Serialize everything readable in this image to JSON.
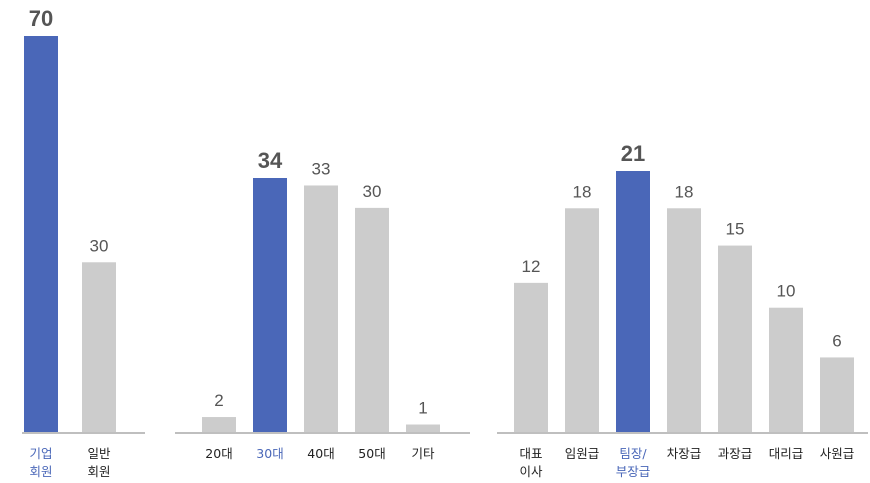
{
  "colors": {
    "highlight": "#4a67b8",
    "normal": "#cccccc",
    "axis": "#999999",
    "text": "#222222",
    "value": "#555555"
  },
  "chart_data": [
    {
      "type": "bar",
      "categories": [
        [
          "기업",
          "회원"
        ],
        [
          "일반",
          "회원"
        ]
      ],
      "values": [
        70,
        30
      ],
      "highlight_index": 0,
      "ylim": [
        0,
        70
      ]
    },
    {
      "type": "bar",
      "categories": [
        [
          "20대"
        ],
        [
          "30대"
        ],
        [
          "40대"
        ],
        [
          "50대"
        ],
        [
          "기타"
        ]
      ],
      "values": [
        2,
        34,
        33,
        30,
        1
      ],
      "highlight_index": 1,
      "ylim": [
        0,
        70
      ]
    },
    {
      "type": "bar",
      "categories": [
        [
          "대표",
          "이사"
        ],
        [
          "임원급"
        ],
        [
          "팀장/",
          "부장급"
        ],
        [
          "차장급"
        ],
        [
          "과장급"
        ],
        [
          "대리급"
        ],
        [
          "사원급"
        ]
      ],
      "values": [
        12,
        18,
        21,
        18,
        15,
        10,
        6
      ],
      "highlight_index": 2,
      "ylim": [
        0,
        21
      ]
    }
  ]
}
